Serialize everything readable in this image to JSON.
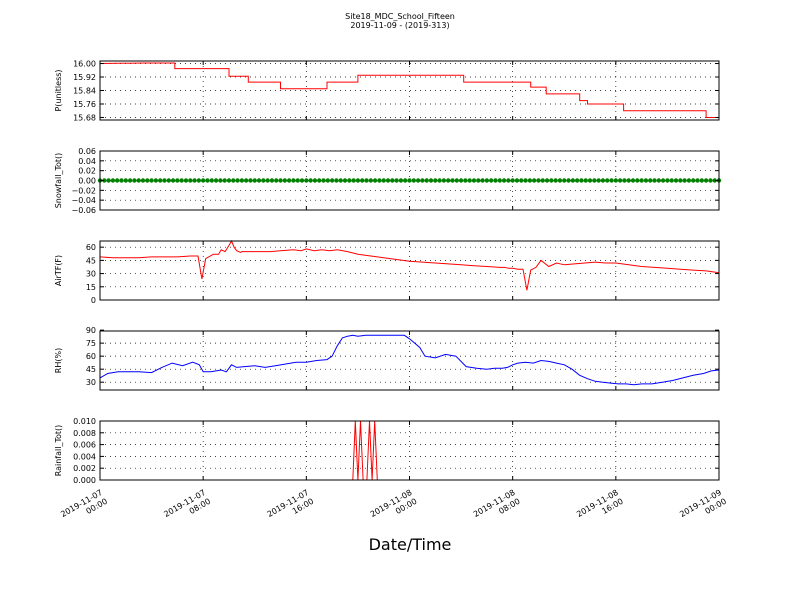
{
  "figure": {
    "title": "Site18_MDC_School_Fifteen",
    "subtitle": "2019-11-09 - (2019-313)",
    "xlabel": "Date/Time"
  },
  "chart_data": [
    {
      "type": "line",
      "ylabel": "P(unitless)",
      "color": "#ff0000",
      "ylim": [
        15.665,
        16.015
      ],
      "yticks": [
        "16.00",
        "15.92",
        "15.84",
        "15.76",
        "15.68"
      ],
      "ytick_values": [
        16.0,
        15.92,
        15.84,
        15.76,
        15.68
      ],
      "x": [
        0,
        1.7,
        2.9,
        2.9,
        5.0,
        5.0,
        5.75,
        5.75,
        7.0,
        7.0,
        8.8,
        8.8,
        10.0,
        10.0,
        11.4,
        11.4,
        14.1,
        14.1,
        16.7,
        16.7,
        17.3,
        17.3,
        18.6,
        18.6,
        18.9,
        18.9,
        19.5,
        19.5,
        20.3,
        20.3,
        23.5,
        23.5,
        24.0
      ],
      "y": [
        16.0,
        16.003,
        16.003,
        15.97,
        15.97,
        15.925,
        15.925,
        15.89,
        15.89,
        15.85,
        15.85,
        15.89,
        15.89,
        15.93,
        15.93,
        15.93,
        15.93,
        15.89,
        15.89,
        15.86,
        15.86,
        15.82,
        15.82,
        15.78,
        15.78,
        15.76,
        15.76,
        15.76,
        15.76,
        15.72,
        15.72,
        15.68,
        15.68
      ]
    },
    {
      "type": "scatter",
      "ylabel": "Snowfall_Tot()",
      "color": "#008000",
      "ylim": [
        -0.06,
        0.06
      ],
      "yticks": [
        "0.06",
        "0.04",
        "0.02",
        "0.00",
        "−0.02",
        "−0.04",
        "−0.06"
      ],
      "ytick_values": [
        0.06,
        0.04,
        0.02,
        0.0,
        -0.02,
        -0.04,
        -0.06
      ],
      "constant": 0.0,
      "x_start": 0,
      "x_end": 24,
      "n_points": 145
    },
    {
      "type": "line",
      "ylabel": "AirTF(F)",
      "color": "#ff0000",
      "ylim": [
        0,
        67
      ],
      "yticks": [
        "60",
        "45",
        "30",
        "15",
        "0"
      ],
      "ytick_values": [
        60,
        45,
        30,
        15,
        0
      ],
      "x": [
        0,
        0.5,
        1.0,
        1.5,
        2.0,
        2.5,
        3.0,
        3.5,
        3.8,
        3.95,
        4.1,
        4.4,
        4.6,
        4.7,
        4.85,
        5.0,
        5.1,
        5.2,
        5.3,
        5.45,
        5.5,
        5.8,
        6.2,
        6.6,
        7.0,
        7.5,
        7.8,
        8.0,
        8.3,
        8.6,
        8.9,
        9.2,
        9.6,
        10.0,
        10.5,
        11.0,
        11.5,
        12.0,
        12.5,
        13.0,
        13.5,
        14.0,
        14.5,
        15.0,
        15.5,
        15.7,
        15.85,
        16.0,
        16.2,
        16.4,
        16.55,
        16.7,
        16.9,
        17.1,
        17.4,
        17.7,
        18.0,
        18.4,
        18.8,
        19.2,
        19.6,
        20.0,
        20.5,
        21.0,
        21.5,
        22.0,
        22.5,
        23.0,
        23.5,
        24.0
      ],
      "y": [
        49,
        48,
        48,
        48,
        49,
        49,
        49,
        50,
        50,
        24,
        47,
        52,
        52,
        57,
        55,
        62,
        67,
        60,
        56,
        54,
        55,
        55,
        55,
        55,
        56,
        57,
        56,
        58,
        56,
        57,
        56,
        57,
        55,
        52,
        50,
        48,
        46,
        44,
        43,
        42,
        41,
        40,
        39,
        38,
        37,
        37,
        36,
        36,
        35,
        35,
        11,
        34,
        37,
        45,
        38,
        42,
        40,
        41,
        42,
        43,
        42,
        42,
        40,
        38,
        37,
        36,
        35,
        34,
        33,
        31
      ]
    },
    {
      "type": "line",
      "ylabel": "RH(%)",
      "color": "#0000ff",
      "ylim": [
        21,
        89
      ],
      "yticks": [
        "90",
        "75",
        "60",
        "45",
        "30"
      ],
      "ytick_values": [
        90,
        75,
        60,
        45,
        30
      ],
      "x": [
        0,
        0.3,
        0.7,
        1.0,
        1.5,
        2.0,
        2.4,
        2.8,
        3.2,
        3.6,
        3.85,
        4.0,
        4.3,
        4.7,
        4.9,
        5.1,
        5.3,
        5.6,
        6.0,
        6.4,
        6.8,
        7.2,
        7.6,
        8.0,
        8.4,
        8.8,
        9.0,
        9.2,
        9.4,
        9.6,
        9.8,
        10.0,
        10.3,
        10.6,
        10.9,
        11.2,
        11.5,
        11.8,
        12.0,
        12.2,
        12.4,
        12.6,
        13.0,
        13.4,
        13.8,
        14.2,
        14.6,
        15.0,
        15.3,
        15.6,
        15.8,
        16.0,
        16.2,
        16.5,
        16.8,
        17.1,
        17.4,
        17.7,
        18.0,
        18.3,
        18.6,
        18.9,
        19.2,
        19.5,
        19.8,
        20.1,
        20.4,
        20.7,
        21.0,
        21.4,
        21.8,
        22.2,
        22.6,
        23.0,
        23.4,
        23.7,
        24.0
      ],
      "y": [
        35,
        40,
        42,
        42,
        42,
        41,
        47,
        52,
        49,
        53,
        50,
        42,
        42,
        44,
        42,
        50,
        47,
        48,
        49,
        47,
        49,
        51,
        53,
        53,
        55,
        56,
        60,
        72,
        81,
        83,
        84,
        83,
        84,
        84,
        84,
        84,
        84,
        84,
        80,
        75,
        70,
        60,
        58,
        62,
        60,
        48,
        46,
        45,
        46,
        46,
        47,
        50,
        52,
        53,
        52,
        55,
        54,
        52,
        50,
        45,
        38,
        34,
        31,
        30,
        29,
        28,
        28,
        27,
        28,
        28,
        30,
        32,
        35,
        38,
        40,
        43,
        44
      ]
    },
    {
      "type": "line",
      "ylabel": "Rainfall_Tot()",
      "color": "#ff0000",
      "ylim": [
        0.0,
        0.01
      ],
      "yticks": [
        "0.010",
        "0.008",
        "0.006",
        "0.004",
        "0.002",
        "0.000"
      ],
      "ytick_values": [
        0.01,
        0.008,
        0.006,
        0.004,
        0.002,
        0.0
      ],
      "x": [
        0,
        9.8,
        9.9,
        10.0,
        10.1,
        10.2,
        10.35,
        10.45,
        10.55,
        10.65,
        10.75,
        24.0
      ],
      "y": [
        0,
        0,
        0.01,
        0,
        0.01,
        0,
        0,
        0.01,
        0,
        0.01,
        0,
        0
      ]
    }
  ],
  "x_axis": {
    "tick_values": [
      0,
      4,
      8,
      12,
      16,
      20,
      24
    ],
    "tick_labels": [
      [
        "2019-11-07",
        "00:00"
      ],
      [
        "2019-11-07",
        "08:00"
      ],
      [
        "2019-11-07",
        "16:00"
      ],
      [
        "2019-11-08",
        "00:00"
      ],
      [
        "2019-11-08",
        "08:00"
      ],
      [
        "2019-11-08",
        "16:00"
      ],
      [
        "2019-11-09",
        "00:00"
      ]
    ]
  }
}
